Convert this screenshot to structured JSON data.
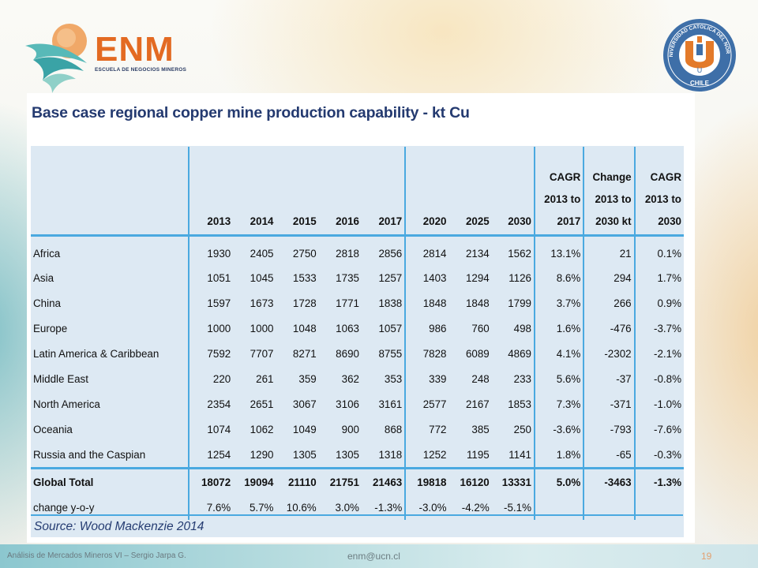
{
  "logo": {
    "name": "ENM",
    "subtitle": "ESCUELA DE NEGOCIOS MINEROS",
    "seal_top": "UNIVERSIDAD CATOLICA DEL NORTE",
    "seal_bottom": "CHILE",
    "seal_letter": "U"
  },
  "slide": {
    "title": "Base case regional copper mine production capability - kt Cu",
    "source": "Source: Wood Mackenzie 2014"
  },
  "table": {
    "headers": [
      "",
      "2013",
      "2014",
      "2015",
      "2016",
      "2017",
      "2020",
      "2025",
      "2030",
      [
        "CAGR",
        "2013 to",
        "2017"
      ],
      [
        "Change",
        "2013 to",
        "2030 kt"
      ],
      [
        "CAGR",
        "2013 to",
        "2030"
      ]
    ],
    "rows": [
      [
        "Africa",
        "1930",
        "2405",
        "2750",
        "2818",
        "2856",
        "2814",
        "2134",
        "1562",
        "13.1%",
        "21",
        "0.1%"
      ],
      [
        "Asia",
        "1051",
        "1045",
        "1533",
        "1735",
        "1257",
        "1403",
        "1294",
        "1126",
        "8.6%",
        "294",
        "1.7%"
      ],
      [
        "China",
        "1597",
        "1673",
        "1728",
        "1771",
        "1838",
        "1848",
        "1848",
        "1799",
        "3.7%",
        "266",
        "0.9%"
      ],
      [
        "Europe",
        "1000",
        "1000",
        "1048",
        "1063",
        "1057",
        "986",
        "760",
        "498",
        "1.6%",
        "-476",
        "-3.7%"
      ],
      [
        "Latin America & Caribbean",
        "7592",
        "7707",
        "8271",
        "8690",
        "8755",
        "7828",
        "6089",
        "4869",
        "4.1%",
        "-2302",
        "-2.1%"
      ],
      [
        "Middle East",
        "220",
        "261",
        "359",
        "362",
        "353",
        "339",
        "248",
        "233",
        "5.6%",
        "-37",
        "-0.8%"
      ],
      [
        "North America",
        "2354",
        "2651",
        "3067",
        "3106",
        "3161",
        "2577",
        "2167",
        "1853",
        "7.3%",
        "-371",
        "-1.0%"
      ],
      [
        "Oceania",
        "1074",
        "1062",
        "1049",
        "900",
        "868",
        "772",
        "385",
        "250",
        "-3.6%",
        "-793",
        "-7.6%"
      ],
      [
        "Russia and the Caspian",
        "1254",
        "1290",
        "1305",
        "1305",
        "1318",
        "1252",
        "1195",
        "1141",
        "1.8%",
        "-65",
        "-0.3%"
      ]
    ],
    "total": [
      "Global Total",
      "18072",
      "19094",
      "21110",
      "21751",
      "21463",
      "19818",
      "16120",
      "13331",
      "5.0%",
      "-3463",
      "-1.3%"
    ],
    "change": [
      "change y-o-y",
      "7.6%",
      "5.7%",
      "10.6%",
      "3.0%",
      "-1.3%",
      "-3.0%",
      "-4.2%",
      "-5.1%",
      "",
      "",
      ""
    ]
  },
  "footer": {
    "left": "Análisis de Mercados Mineros VI – Sergio Jarpa G.",
    "email": "enm@ucn.cl",
    "page": "19"
  },
  "colors": {
    "accent_orange": "#e36a22",
    "title_blue": "#243a70",
    "grid_blue": "#4aa9e0",
    "table_bg": "#dde9f3"
  }
}
